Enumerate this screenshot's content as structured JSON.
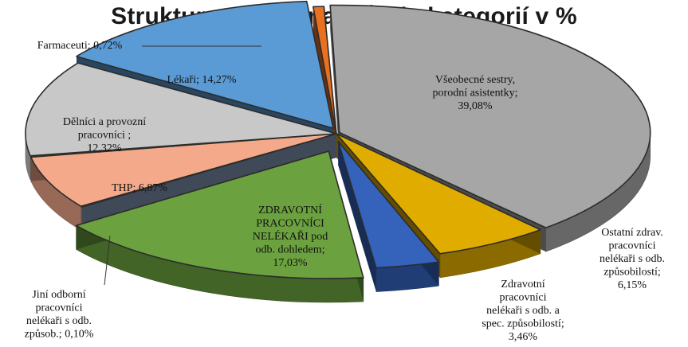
{
  "chart_data": {
    "type": "pie",
    "title": "Struktura zaměstnanců dle kategorií v %",
    "slices": [
      {
        "label_lines": [
          "Všeobecné sestry,",
          "porodní asistentky;",
          "39,08%"
        ],
        "value": 39.08,
        "color": "#a6a6a6"
      },
      {
        "label_lines": [
          "Ostatní zdrav.",
          "pracovníci",
          "nelékaři s odb.",
          "způsobilostí;",
          "6,15%"
        ],
        "value": 6.15,
        "color": "#e0ac00"
      },
      {
        "label_lines": [
          "Zdravotní",
          "pracovníci",
          "nelékaři s odb. a",
          "spec. způsobilostí;",
          "3,46%"
        ],
        "value": 3.46,
        "color": "#3563bc"
      },
      {
        "label_lines": [
          "ZDRAVOTNÍ",
          "PRACOVNÍCI",
          "NELÉKAŘI pod",
          "odb. dohledem;",
          "17,03%"
        ],
        "value": 17.03,
        "color": "#6ba23f"
      },
      {
        "label_lines": [
          "Jiní odborní",
          "pracovníci",
          "nelékaři s odb.",
          "způsob.; 0,10%"
        ],
        "value": 0.1,
        "color": "#8ea3c4"
      },
      {
        "label_lines": [
          "THP; 6,87%"
        ],
        "value": 6.87,
        "color": "#f4a98a"
      },
      {
        "label_lines": [
          "Dělníci a provozní",
          "pracovníci ;",
          "12,32%"
        ],
        "value": 12.32,
        "color": "#c8c8c8"
      },
      {
        "label_lines": [
          "Lékaři; 14,27%"
        ],
        "value": 14.27,
        "color": "#5b9bd5"
      },
      {
        "label_lines": [
          "Farmaceuti; 0,72%"
        ],
        "value": 0.72,
        "color": "#e8701f"
      }
    ],
    "legend": "none"
  }
}
